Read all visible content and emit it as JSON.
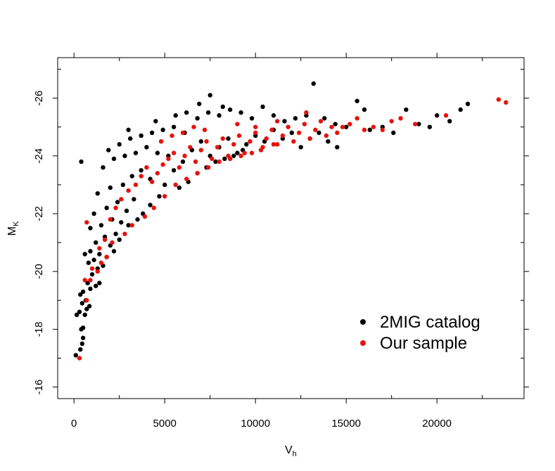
{
  "chart_data": {
    "type": "scatter",
    "title": "",
    "xlabel": "V",
    "xlabel_sub": "h",
    "ylabel": "M",
    "ylabel_sub": "K",
    "xlim": [
      -900,
      24800
    ],
    "ylim": [
      -15.6,
      -27.4
    ],
    "xticks": [
      0,
      5000,
      10000,
      15000,
      20000
    ],
    "yticks": [
      -16,
      -18,
      -20,
      -22,
      -24,
      -26
    ],
    "xtick_labels": [
      "0",
      "5000",
      "10000",
      "15000",
      "20000"
    ],
    "ytick_labels": [
      "-16",
      "-18",
      "-20",
      "-22",
      "-24",
      "-26"
    ],
    "grid": false,
    "legend_position": "bottom-right",
    "series": [
      {
        "name": "2MIG catalog",
        "color": "#000000",
        "points": [
          [
            100,
            -17.1
          ],
          [
            350,
            -17.3
          ],
          [
            450,
            -17.5
          ],
          [
            500,
            -17.7
          ],
          [
            400,
            -18.0
          ],
          [
            500,
            -18.05
          ],
          [
            150,
            -18.5
          ],
          [
            300,
            -18.6
          ],
          [
            600,
            -18.5
          ],
          [
            700,
            -18.7
          ],
          [
            850,
            -18.8
          ],
          [
            450,
            -18.9
          ],
          [
            650,
            -19.0
          ],
          [
            350,
            -19.2
          ],
          [
            500,
            -19.3
          ],
          [
            900,
            -19.4
          ],
          [
            750,
            -19.6
          ],
          [
            1200,
            -19.5
          ],
          [
            1400,
            -19.6
          ],
          [
            1000,
            -19.9
          ],
          [
            1300,
            -20.1
          ],
          [
            1600,
            -20.2
          ],
          [
            800,
            -20.3
          ],
          [
            1100,
            -20.4
          ],
          [
            600,
            -20.6
          ],
          [
            900,
            -20.7
          ],
          [
            1400,
            -20.6
          ],
          [
            1800,
            -20.5
          ],
          [
            1200,
            -21.0
          ],
          [
            1700,
            -21.2
          ],
          [
            2000,
            -20.9
          ],
          [
            2300,
            -21.3
          ],
          [
            900,
            -21.5
          ],
          [
            1500,
            -21.6
          ],
          [
            2100,
            -21.8
          ],
          [
            2600,
            -21.7
          ],
          [
            1100,
            -22.0
          ],
          [
            1800,
            -22.2
          ],
          [
            2400,
            -22.4
          ],
          [
            2900,
            -22.1
          ],
          [
            3300,
            -22.5
          ],
          [
            3800,
            -22.0
          ],
          [
            1300,
            -22.7
          ],
          [
            2000,
            -22.9
          ],
          [
            2700,
            -23.0
          ],
          [
            3200,
            -23.3
          ],
          [
            3700,
            -23.5
          ],
          [
            4200,
            -23.2
          ],
          [
            400,
            -23.8
          ],
          [
            1600,
            -23.6
          ],
          [
            2200,
            -23.9
          ],
          [
            2800,
            -24.0
          ],
          [
            3400,
            -24.1
          ],
          [
            4000,
            -24.3
          ],
          [
            4600,
            -24.1
          ],
          [
            5200,
            -24.0
          ],
          [
            1900,
            -24.2
          ],
          [
            2500,
            -24.4
          ],
          [
            3100,
            -24.6
          ],
          [
            3700,
            -24.7
          ],
          [
            4300,
            -24.8
          ],
          [
            4900,
            -24.9
          ],
          [
            5500,
            -25.0
          ],
          [
            6100,
            -24.8
          ],
          [
            3000,
            -24.9
          ],
          [
            4500,
            -25.2
          ],
          [
            5600,
            -25.4
          ],
          [
            6200,
            -25.5
          ],
          [
            6800,
            -25.3
          ],
          [
            7400,
            -25.5
          ],
          [
            8000,
            -25.4
          ],
          [
            8600,
            -25.6
          ],
          [
            9200,
            -25.5
          ],
          [
            9800,
            -25.3
          ],
          [
            10400,
            -25.7
          ],
          [
            11000,
            -25.4
          ],
          [
            11600,
            -25.2
          ],
          [
            12200,
            -25.3
          ],
          [
            12800,
            -25.4
          ],
          [
            13200,
            -26.5
          ],
          [
            13800,
            -25.3
          ],
          [
            14400,
            -25.1
          ],
          [
            15000,
            -25.0
          ],
          [
            15600,
            -25.9
          ],
          [
            16000,
            -25.6
          ],
          [
            16300,
            -24.9
          ],
          [
            17000,
            -25.0
          ],
          [
            17600,
            -24.8
          ],
          [
            18300,
            -25.6
          ],
          [
            19000,
            -25.1
          ],
          [
            19600,
            -25.0
          ],
          [
            20000,
            -25.4
          ],
          [
            20700,
            -25.2
          ],
          [
            21300,
            -25.6
          ],
          [
            21700,
            -25.8
          ],
          [
            7500,
            -26.1
          ],
          [
            6900,
            -25.8
          ],
          [
            8200,
            -25.7
          ],
          [
            5000,
            -23.0
          ],
          [
            5500,
            -23.5
          ],
          [
            6000,
            -23.8
          ],
          [
            6500,
            -24.2
          ],
          [
            7000,
            -24.5
          ],
          [
            7500,
            -24.0
          ],
          [
            8000,
            -24.3
          ],
          [
            8500,
            -24.6
          ],
          [
            9000,
            -24.1
          ],
          [
            9500,
            -24.4
          ],
          [
            10000,
            -24.7
          ],
          [
            10500,
            -24.5
          ],
          [
            11000,
            -24.9
          ],
          [
            11500,
            -24.6
          ],
          [
            12000,
            -24.8
          ],
          [
            12500,
            -24.3
          ],
          [
            13000,
            -24.6
          ],
          [
            13500,
            -24.8
          ],
          [
            14000,
            -24.5
          ],
          [
            14500,
            -24.3
          ],
          [
            5800,
            -22.9
          ],
          [
            6300,
            -23.1
          ],
          [
            6800,
            -23.4
          ],
          [
            7300,
            -23.6
          ],
          [
            7800,
            -23.8
          ],
          [
            8300,
            -23.9
          ],
          [
            8800,
            -24.0
          ],
          [
            9300,
            -24.2
          ],
          [
            4200,
            -22.3
          ],
          [
            4700,
            -22.6
          ],
          [
            3500,
            -21.8
          ],
          [
            3000,
            -21.6
          ],
          [
            2500,
            -21.1
          ],
          [
            2200,
            -20.7
          ]
        ]
      },
      {
        "name": "Our sample",
        "color": "#e8120c",
        "points": [
          [
            300,
            -17.0
          ],
          [
            700,
            -19.0
          ],
          [
            600,
            -19.7
          ],
          [
            900,
            -19.7
          ],
          [
            1000,
            -20.1
          ],
          [
            1300,
            -20.0
          ],
          [
            1500,
            -20.3
          ],
          [
            1800,
            -20.5
          ],
          [
            1400,
            -20.8
          ],
          [
            1700,
            -21.1
          ],
          [
            2100,
            -21.0
          ],
          [
            700,
            -21.7
          ],
          [
            2000,
            -21.8
          ],
          [
            2300,
            -22.2
          ],
          [
            2600,
            -22.5
          ],
          [
            3000,
            -22.8
          ],
          [
            3400,
            -23.0
          ],
          [
            3700,
            -23.3
          ],
          [
            4000,
            -23.6
          ],
          [
            4300,
            -23.1
          ],
          [
            4600,
            -23.4
          ],
          [
            4900,
            -23.7
          ],
          [
            5200,
            -23.9
          ],
          [
            5500,
            -24.1
          ],
          [
            5800,
            -23.6
          ],
          [
            6100,
            -24.0
          ],
          [
            6400,
            -24.3
          ],
          [
            6700,
            -23.8
          ],
          [
            7000,
            -24.2
          ],
          [
            7300,
            -24.5
          ],
          [
            7600,
            -23.9
          ],
          [
            7900,
            -24.3
          ],
          [
            8200,
            -24.6
          ],
          [
            8500,
            -24.0
          ],
          [
            8800,
            -24.4
          ],
          [
            9100,
            -24.7
          ],
          [
            9400,
            -24.1
          ],
          [
            9700,
            -24.5
          ],
          [
            10000,
            -24.8
          ],
          [
            10300,
            -24.2
          ],
          [
            10600,
            -24.6
          ],
          [
            10900,
            -24.9
          ],
          [
            11200,
            -24.4
          ],
          [
            11500,
            -24.7
          ],
          [
            11800,
            -25.0
          ],
          [
            12100,
            -24.5
          ],
          [
            12400,
            -24.8
          ],
          [
            12700,
            -25.1
          ],
          [
            13000,
            -24.6
          ],
          [
            13300,
            -24.9
          ],
          [
            13600,
            -25.2
          ],
          [
            13900,
            -24.7
          ],
          [
            14200,
            -25.0
          ],
          [
            14500,
            -24.8
          ],
          [
            14800,
            -25.0
          ],
          [
            15200,
            -25.1
          ],
          [
            15600,
            -25.3
          ],
          [
            16000,
            -24.9
          ],
          [
            16500,
            -25.0
          ],
          [
            17000,
            -24.9
          ],
          [
            17500,
            -25.2
          ],
          [
            18000,
            -25.3
          ],
          [
            18800,
            -25.1
          ],
          [
            20500,
            -25.4
          ],
          [
            23400,
            -25.95
          ],
          [
            23800,
            -25.85
          ],
          [
            5000,
            -22.6
          ],
          [
            5600,
            -23.0
          ],
          [
            6200,
            -23.2
          ],
          [
            6800,
            -23.4
          ],
          [
            7400,
            -23.6
          ],
          [
            8000,
            -23.8
          ],
          [
            8600,
            -23.9
          ],
          [
            9200,
            -24.0
          ],
          [
            9800,
            -24.1
          ],
          [
            10400,
            -24.3
          ],
          [
            11000,
            -24.4
          ],
          [
            4400,
            -22.2
          ],
          [
            3900,
            -21.9
          ],
          [
            3200,
            -21.6
          ],
          [
            2800,
            -21.3
          ],
          [
            4800,
            -24.5
          ],
          [
            5400,
            -24.7
          ],
          [
            6000,
            -24.8
          ],
          [
            6600,
            -25.0
          ],
          [
            7200,
            -24.9
          ],
          [
            12800,
            -25.5
          ],
          [
            10000,
            -25.0
          ],
          [
            11200,
            -25.2
          ],
          [
            9000,
            -25.1
          ]
        ]
      }
    ]
  }
}
